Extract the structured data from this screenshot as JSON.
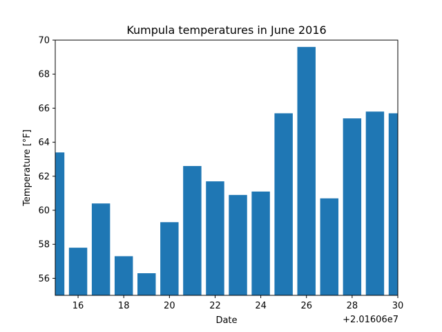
{
  "chart_data": {
    "type": "bar",
    "title": "Kumpula temperatures in June 2016",
    "xlabel": "Date",
    "ylabel": "Temperature [°F]",
    "x_offset_label": "+2.01606e7",
    "x": [
      15,
      16,
      17,
      18,
      19,
      20,
      21,
      22,
      23,
      24,
      25,
      26,
      27,
      28,
      29,
      30
    ],
    "values": [
      63.4,
      57.8,
      60.4,
      57.3,
      56.3,
      59.3,
      62.6,
      61.7,
      60.9,
      61.1,
      65.7,
      69.6,
      60.7,
      65.4,
      65.8,
      65.7
    ],
    "xlim": [
      15,
      30
    ],
    "ylim": [
      55,
      70
    ],
    "x_ticks": [
      16,
      18,
      20,
      22,
      24,
      26,
      28,
      30
    ],
    "y_ticks": [
      56,
      58,
      60,
      62,
      64,
      66,
      68,
      70
    ],
    "bar_color": "#1f77b4",
    "grid": false
  }
}
